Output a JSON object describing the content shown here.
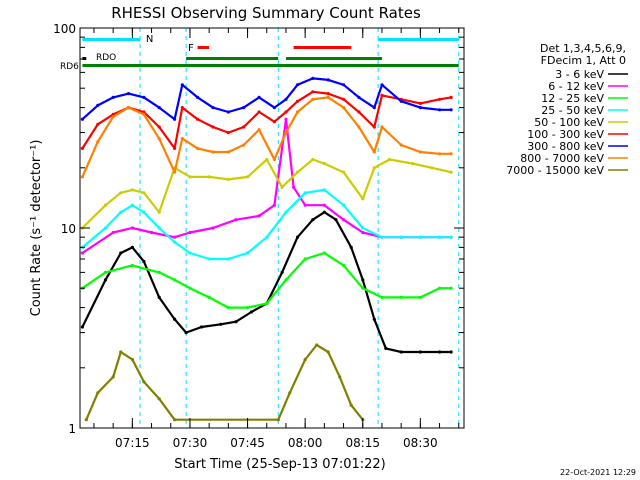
{
  "chart_data": {
    "type": "line",
    "title": "RHESSI Observing Summary Count Rates",
    "xlabel": "Start Time (25-Sep-13 07:01:22)",
    "ylabel": "Count Rate (s⁻¹ detector⁻¹)",
    "y_scale": "log",
    "ylim": [
      1,
      100
    ],
    "y_ticks": [
      {
        "value": 1,
        "label": "1"
      },
      {
        "value": 10,
        "label": "10"
      },
      {
        "value": 100,
        "label": "100"
      }
    ],
    "xlim": [
      "07:01:22",
      "08:41:22"
    ],
    "x_ticks": [
      "07:15",
      "07:30",
      "07:45",
      "08:00",
      "08:15",
      "08:30"
    ],
    "legend_position": "right",
    "legend_header": [
      "Det 1,3,4,5,6,9,",
      "FDecim 1, Att 0"
    ],
    "series": [
      {
        "name": "3 - 6 keV",
        "color": "#000000",
        "points": [
          [
            "07:02",
            3.2
          ],
          [
            "07:08",
            5.5
          ],
          [
            "07:12",
            7.5
          ],
          [
            "07:15",
            8.0
          ],
          [
            "07:18",
            6.8
          ],
          [
            "07:22",
            4.5
          ],
          [
            "07:26",
            3.5
          ],
          [
            "07:29",
            3.0
          ],
          [
            "07:33",
            3.2
          ],
          [
            "07:38",
            3.3
          ],
          [
            "07:42",
            3.4
          ],
          [
            "07:46",
            3.8
          ],
          [
            "07:50",
            4.2
          ],
          [
            "07:54",
            6.0
          ],
          [
            "07:58",
            9.0
          ],
          [
            "08:02",
            11.0
          ],
          [
            "08:05",
            12.0
          ],
          [
            "08:08",
            11.0
          ],
          [
            "08:12",
            8.0
          ],
          [
            "08:15",
            5.5
          ],
          [
            "08:18",
            3.5
          ],
          [
            "08:21",
            2.5
          ],
          [
            "08:25",
            2.4
          ],
          [
            "08:30",
            2.4
          ],
          [
            "08:35",
            2.4
          ],
          [
            "08:38",
            2.4
          ]
        ]
      },
      {
        "name": "6 - 12 keV",
        "color": "#ff00ff",
        "points": [
          [
            "07:02",
            7.5
          ],
          [
            "07:10",
            9.5
          ],
          [
            "07:15",
            10.0
          ],
          [
            "07:20",
            9.5
          ],
          [
            "07:26",
            9.0
          ],
          [
            "07:30",
            9.5
          ],
          [
            "07:36",
            10.0
          ],
          [
            "07:42",
            11.0
          ],
          [
            "07:48",
            11.5
          ],
          [
            "07:52",
            13.0
          ],
          [
            "07:55",
            35.0
          ],
          [
            "07:57",
            16.0
          ],
          [
            "08:00",
            13.0
          ],
          [
            "08:05",
            13.0
          ],
          [
            "08:10",
            11.0
          ],
          [
            "08:15",
            9.5
          ],
          [
            "08:20",
            9.0
          ],
          [
            "08:25",
            9.0
          ],
          [
            "08:30",
            9.0
          ],
          [
            "08:35",
            9.0
          ],
          [
            "08:38",
            9.0
          ]
        ]
      },
      {
        "name": "12 - 25 keV",
        "color": "#00ff00",
        "points": [
          [
            "07:02",
            5.0
          ],
          [
            "07:08",
            6.0
          ],
          [
            "07:15",
            6.5
          ],
          [
            "07:22",
            6.0
          ],
          [
            "07:26",
            5.5
          ],
          [
            "07:30",
            5.0
          ],
          [
            "07:35",
            4.5
          ],
          [
            "07:40",
            4.0
          ],
          [
            "07:45",
            4.0
          ],
          [
            "07:50",
            4.2
          ],
          [
            "07:55",
            5.5
          ],
          [
            "08:00",
            7.0
          ],
          [
            "08:05",
            7.5
          ],
          [
            "08:10",
            6.5
          ],
          [
            "08:15",
            5.0
          ],
          [
            "08:20",
            4.5
          ],
          [
            "08:25",
            4.5
          ],
          [
            "08:30",
            4.5
          ],
          [
            "08:35",
            5.0
          ],
          [
            "08:38",
            5.0
          ]
        ]
      },
      {
        "name": "25 - 50 keV",
        "color": "#00ffff",
        "points": [
          [
            "07:02",
            8.0
          ],
          [
            "07:08",
            10.0
          ],
          [
            "07:12",
            12.0
          ],
          [
            "07:15",
            13.0
          ],
          [
            "07:18",
            12.0
          ],
          [
            "07:22",
            10.0
          ],
          [
            "07:26",
            8.5
          ],
          [
            "07:30",
            7.5
          ],
          [
            "07:35",
            7.0
          ],
          [
            "07:40",
            7.0
          ],
          [
            "07:45",
            7.5
          ],
          [
            "07:50",
            9.0
          ],
          [
            "07:55",
            12.0
          ],
          [
            "08:00",
            15.0
          ],
          [
            "08:05",
            15.5
          ],
          [
            "08:10",
            13.0
          ],
          [
            "08:15",
            10.0
          ],
          [
            "08:20",
            9.0
          ],
          [
            "08:25",
            9.0
          ],
          [
            "08:30",
            9.0
          ],
          [
            "08:35",
            9.0
          ],
          [
            "08:38",
            9.0
          ]
        ]
      },
      {
        "name": "50 - 100 keV",
        "color": "#cccc00",
        "points": [
          [
            "07:02",
            10.0
          ],
          [
            "07:08",
            13.0
          ],
          [
            "07:12",
            15.0
          ],
          [
            "07:15",
            15.5
          ],
          [
            "07:18",
            15.0
          ],
          [
            "07:22",
            12.0
          ],
          [
            "07:26",
            20.0
          ],
          [
            "07:30",
            18.0
          ],
          [
            "07:35",
            18.0
          ],
          [
            "07:40",
            17.5
          ],
          [
            "07:45",
            18.0
          ],
          [
            "07:50",
            22.0
          ],
          [
            "07:54",
            16.0
          ],
          [
            "07:58",
            19.0
          ],
          [
            "08:02",
            22.0
          ],
          [
            "08:05",
            21.0
          ],
          [
            "08:10",
            19.0
          ],
          [
            "08:15",
            14.0
          ],
          [
            "08:18",
            20.0
          ],
          [
            "08:22",
            22.0
          ],
          [
            "08:28",
            21.0
          ],
          [
            "08:33",
            20.0
          ],
          [
            "08:38",
            19.0
          ]
        ]
      },
      {
        "name": "100 - 300 keV",
        "color": "#ff0000",
        "points": [
          [
            "07:02",
            25.0
          ],
          [
            "07:06",
            33.0
          ],
          [
            "07:10",
            37.0
          ],
          [
            "07:14",
            40.0
          ],
          [
            "07:18",
            38.0
          ],
          [
            "07:22",
            32.0
          ],
          [
            "07:26",
            25.0
          ],
          [
            "07:28",
            40.0
          ],
          [
            "07:32",
            35.0
          ],
          [
            "07:36",
            32.0
          ],
          [
            "07:40",
            30.0
          ],
          [
            "07:44",
            32.0
          ],
          [
            "07:48",
            38.0
          ],
          [
            "07:52",
            34.0
          ],
          [
            "07:55",
            38.0
          ],
          [
            "07:58",
            43.0
          ],
          [
            "08:02",
            48.0
          ],
          [
            "08:06",
            47.0
          ],
          [
            "08:10",
            44.0
          ],
          [
            "08:14",
            38.0
          ],
          [
            "08:18",
            32.0
          ],
          [
            "08:20",
            46.0
          ],
          [
            "08:25",
            44.0
          ],
          [
            "08:30",
            42.0
          ],
          [
            "08:35",
            44.0
          ],
          [
            "08:38",
            45.0
          ]
        ]
      },
      {
        "name": "300 - 800 keV",
        "color": "#0000ff",
        "points": [
          [
            "07:02",
            35.0
          ],
          [
            "07:06",
            41.0
          ],
          [
            "07:10",
            45.0
          ],
          [
            "07:14",
            47.0
          ],
          [
            "07:18",
            45.0
          ],
          [
            "07:22",
            40.0
          ],
          [
            "07:26",
            35.0
          ],
          [
            "07:28",
            52.0
          ],
          [
            "07:32",
            45.0
          ],
          [
            "07:36",
            40.0
          ],
          [
            "07:40",
            38.0
          ],
          [
            "07:44",
            40.0
          ],
          [
            "07:48",
            45.0
          ],
          [
            "07:52",
            40.0
          ],
          [
            "07:55",
            44.0
          ],
          [
            "07:58",
            52.0
          ],
          [
            "08:02",
            56.0
          ],
          [
            "08:06",
            55.0
          ],
          [
            "08:10",
            52.0
          ],
          [
            "08:14",
            45.0
          ],
          [
            "08:18",
            40.0
          ],
          [
            "08:20",
            52.0
          ],
          [
            "08:25",
            43.0
          ],
          [
            "08:30",
            40.0
          ],
          [
            "08:35",
            39.0
          ],
          [
            "08:38",
            39.0
          ]
        ]
      },
      {
        "name": "800 - 7000 keV",
        "color": "#ff8000",
        "points": [
          [
            "07:02",
            18.0
          ],
          [
            "07:06",
            27.0
          ],
          [
            "07:10",
            36.0
          ],
          [
            "07:14",
            40.0
          ],
          [
            "07:18",
            37.0
          ],
          [
            "07:22",
            28.0
          ],
          [
            "07:26",
            19.0
          ],
          [
            "07:28",
            28.0
          ],
          [
            "07:32",
            25.0
          ],
          [
            "07:36",
            24.0
          ],
          [
            "07:40",
            24.0
          ],
          [
            "07:44",
            26.0
          ],
          [
            "07:48",
            31.0
          ],
          [
            "07:52",
            22.0
          ],
          [
            "07:55",
            30.0
          ],
          [
            "07:58",
            38.0
          ],
          [
            "08:02",
            44.0
          ],
          [
            "08:06",
            45.0
          ],
          [
            "08:10",
            40.0
          ],
          [
            "08:14",
            32.0
          ],
          [
            "08:18",
            24.0
          ],
          [
            "08:20",
            32.0
          ],
          [
            "08:25",
            26.0
          ],
          [
            "08:30",
            24.0
          ],
          [
            "08:35",
            23.5
          ],
          [
            "08:38",
            23.5
          ]
        ]
      },
      {
        "name": "7000 - 15000 keV",
        "color": "#808000",
        "points": [
          [
            "07:03",
            1.1
          ],
          [
            "07:06",
            1.5
          ],
          [
            "07:10",
            1.8
          ],
          [
            "07:12",
            2.4
          ],
          [
            "07:15",
            2.2
          ],
          [
            "07:18",
            1.7
          ],
          [
            "07:22",
            1.4
          ],
          [
            "07:26",
            1.1
          ],
          [
            "07:53",
            1.1
          ],
          [
            "07:56",
            1.5
          ],
          [
            "08:00",
            2.2
          ],
          [
            "08:03",
            2.6
          ],
          [
            "08:06",
            2.4
          ],
          [
            "08:09",
            1.8
          ],
          [
            "08:12",
            1.3
          ],
          [
            "08:15",
            1.1
          ]
        ]
      }
    ],
    "top_labels": {
      "n_label": "N",
      "f_label": "F",
      "rdo_label": "RDO",
      "rd6_label": "RD6"
    }
  },
  "footer": {
    "timestamp": "22-Oct-2021 12:29"
  }
}
